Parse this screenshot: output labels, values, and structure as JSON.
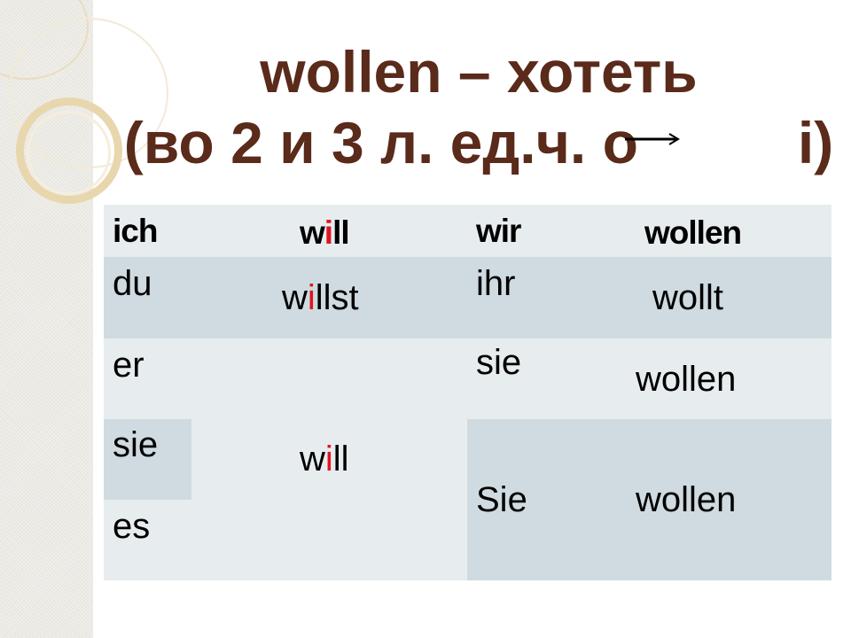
{
  "title": {
    "line1": "wollen – хотеть",
    "line2_prefix": "(во 2 и 3 л. ед.ч. о",
    "line2_suffix": "i)",
    "arrow_icon": "right-arrow",
    "color": "#5a2a1a"
  },
  "table": {
    "header": {
      "ich": "ich",
      "will_w": "w",
      "will_i": "i",
      "will_ll": "ll",
      "wir": "wir",
      "wollen": "wollen"
    },
    "du": "du",
    "willst_w": "w",
    "willst_i": "i",
    "willst_rest": "llst",
    "ihr": "ihr",
    "wollt": "wollt",
    "er": "er",
    "sie_pl": "sie",
    "wollen_pl": "wollen",
    "sie": "sie",
    "es": "es",
    "will_w": "w",
    "will_i": "i",
    "will_ll": "ll",
    "Sie": "Sie",
    "wollen_formal": "wollen",
    "colors": {
      "light": "#e7ecee",
      "dark": "#cfdbe0",
      "highlight": "#e0141e"
    }
  }
}
